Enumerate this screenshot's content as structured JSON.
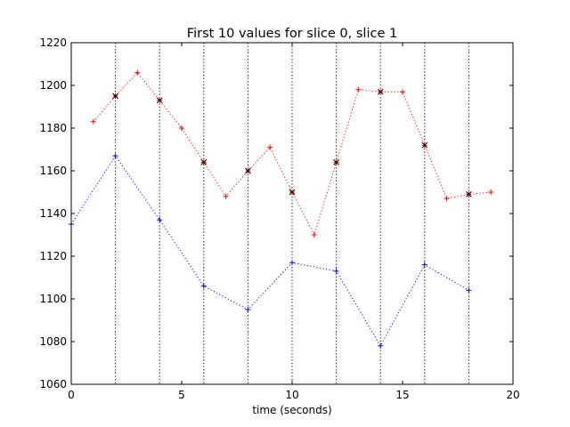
{
  "chart_data": {
    "type": "line",
    "title": "First 10 values for slice 0, slice 1",
    "xlabel": "time (seconds)",
    "ylabel": "",
    "xlim": [
      0,
      20
    ],
    "ylim": [
      1060,
      1220
    ],
    "xticks": [
      0,
      5,
      10,
      15,
      20
    ],
    "yticks": [
      1060,
      1080,
      1100,
      1120,
      1140,
      1160,
      1180,
      1200,
      1220
    ],
    "grid": false,
    "legend": "none",
    "vlines": {
      "x": [
        2,
        4,
        6,
        8,
        10,
        12,
        14,
        16,
        18
      ],
      "style": "dotted",
      "color": "#000000"
    },
    "series": [
      {
        "color": "#0000ff",
        "linestyle": "dotted",
        "marker": "+",
        "x": [
          0,
          2,
          4,
          6,
          8,
          10,
          12,
          14,
          16,
          18
        ],
        "y": [
          1135,
          1167,
          1137,
          1106,
          1095,
          1117,
          1113,
          1078,
          1116,
          1104
        ]
      },
      {
        "color": "#ff0000",
        "linestyle": "dotted",
        "marker": "+",
        "x": [
          1,
          2,
          3,
          4,
          5,
          6,
          7,
          8,
          9,
          10,
          11,
          12,
          13,
          14,
          15,
          16,
          17,
          18,
          19
        ],
        "y": [
          1183,
          1195,
          1206,
          1193,
          1180,
          1164,
          1148,
          1160,
          1171,
          1150,
          1130,
          1164,
          1198,
          1197,
          1197,
          1172,
          1147,
          1149,
          1150
        ]
      }
    ],
    "overlay_markers": {
      "color": "#000000",
      "marker": "x",
      "x": [
        2,
        4,
        6,
        8,
        10,
        12,
        14,
        16,
        18
      ],
      "y": [
        1195,
        1193,
        1164,
        1160,
        1150,
        1164,
        1197,
        1172,
        1149
      ]
    }
  }
}
